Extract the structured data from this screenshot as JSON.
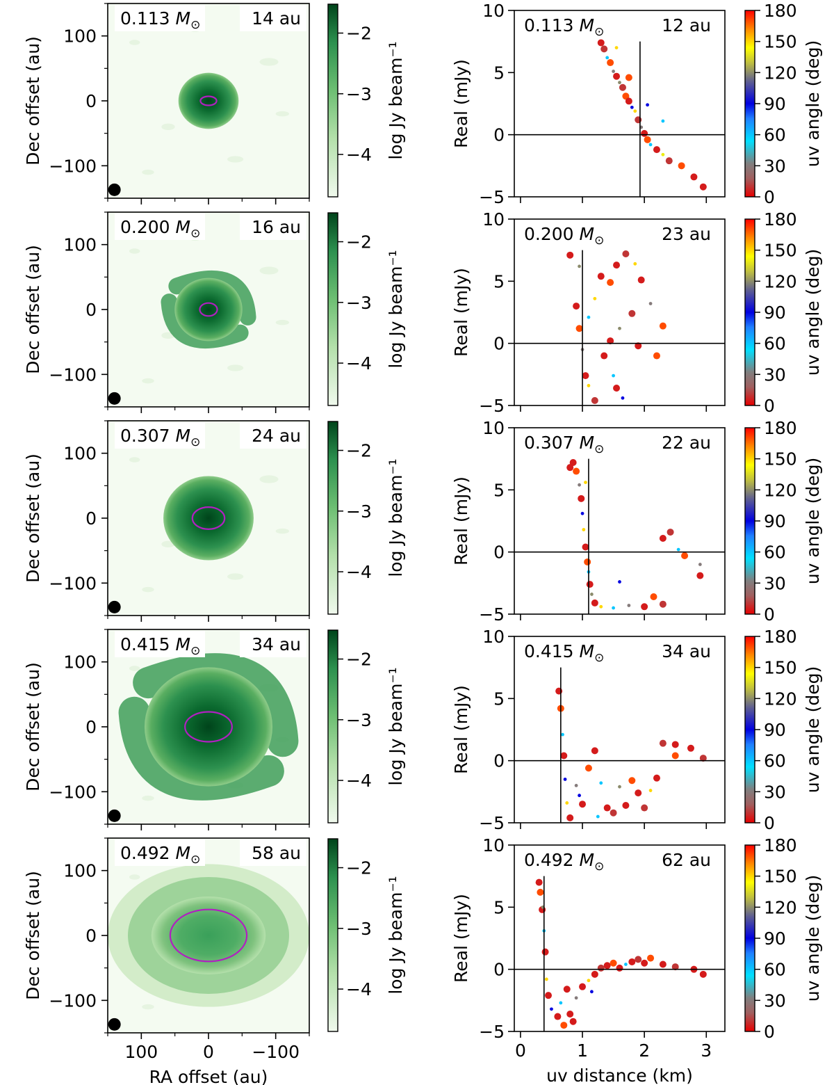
{
  "chart_data": {
    "type": "scatter",
    "layout": "5 rows x 2 columns; left column images with colorbars, right column scatter plots with colorbars",
    "shared_labels": {
      "image_xlabel": "RA offset (au)",
      "image_ylabel": "Dec offset (au)",
      "image_colorbar_label": "log Jy beam⁻¹",
      "scatter_xlabel": "uv distance (km)",
      "scatter_ylabel": "Real (mJy)",
      "scatter_colorbar_label": "uv angle (deg)"
    },
    "image_axes": {
      "xlim": [
        150,
        -150
      ],
      "ylim": [
        -150,
        150
      ],
      "xticks": [
        100,
        0,
        -100
      ],
      "yticks": [
        100,
        0,
        -100
      ],
      "xtick_labels": [
        "100",
        "0",
        "−100"
      ],
      "ytick_labels": [
        "100",
        "0",
        "−100"
      ],
      "colormap": "Greens",
      "colorbar_ticks": [
        "−2",
        "−3",
        "−4"
      ]
    },
    "scatter_axes": {
      "xlim": [
        -0.1,
        3.3
      ],
      "ylim": [
        -5,
        10
      ],
      "xticks": [
        0,
        1,
        2,
        3
      ],
      "xtick_labels": [
        "0",
        "1",
        "2",
        "3"
      ],
      "yticks": [
        -5,
        0,
        5,
        10
      ],
      "ytick_labels": [
        "−5",
        "0",
        "5",
        "10"
      ],
      "colormap": "red-grey-blue-cyan-yellow-orange-red (jet-like)",
      "colorbar_ticks": [
        "180",
        "150",
        "120",
        "90",
        "60",
        "30",
        "0"
      ],
      "colorbar_tick_values": [
        180,
        150,
        120,
        90,
        60,
        30,
        0
      ]
    },
    "panels": [
      {
        "mass": "0.113",
        "unit": "M⊙",
        "image_radius": "14 au",
        "uv_radius": "12 au",
        "image": {
          "extent_au": 40,
          "spiral": false,
          "ellipse_au": [
            12,
            7
          ]
        },
        "uv_null_km": 1.93,
        "uv_points": [
          [
            1.3,
            7.4,
            5
          ],
          [
            1.35,
            6.9,
            10
          ],
          [
            1.4,
            6.2,
            60
          ],
          [
            1.45,
            5.8,
            170
          ],
          [
            1.5,
            5.1,
            30
          ],
          [
            1.55,
            4.7,
            5
          ],
          [
            1.6,
            4.2,
            120
          ],
          [
            1.65,
            3.8,
            10
          ],
          [
            1.7,
            3.1,
            170
          ],
          [
            1.75,
            2.7,
            5
          ],
          [
            1.8,
            2.2,
            90
          ],
          [
            1.85,
            1.9,
            150
          ],
          [
            1.9,
            1.2,
            10
          ],
          [
            1.95,
            0.6,
            30
          ],
          [
            2.0,
            0.1,
            5
          ],
          [
            2.05,
            -0.4,
            170
          ],
          [
            2.1,
            -0.8,
            60
          ],
          [
            2.2,
            -1.2,
            5
          ],
          [
            2.3,
            -1.6,
            140
          ],
          [
            2.4,
            -2.1,
            10
          ],
          [
            2.6,
            -2.5,
            170
          ],
          [
            2.8,
            -3.4,
            5
          ],
          [
            2.95,
            -4.2,
            5
          ],
          [
            1.75,
            4.6,
            170
          ],
          [
            2.3,
            1.1,
            60
          ],
          [
            1.55,
            7.0,
            150
          ],
          [
            2.05,
            2.4,
            90
          ]
        ]
      },
      {
        "mass": "0.200",
        "unit": "M⊙",
        "image_radius": "16 au",
        "uv_radius": "23 au",
        "image": {
          "extent_au": 45,
          "spiral": true,
          "ellipse_au": [
            13,
            10
          ]
        },
        "uv_null_km": 1.0,
        "uv_points": [
          [
            0.9,
            3.0,
            5
          ],
          [
            0.95,
            1.2,
            170
          ],
          [
            1.0,
            -0.5,
            30
          ],
          [
            1.05,
            -2.6,
            5
          ],
          [
            1.1,
            -3.4,
            150
          ],
          [
            1.2,
            -4.6,
            10
          ],
          [
            0.8,
            7.1,
            5
          ],
          [
            0.95,
            6.2,
            120
          ],
          [
            1.3,
            5.4,
            5
          ],
          [
            1.45,
            4.9,
            170
          ],
          [
            1.55,
            6.3,
            5
          ],
          [
            1.7,
            7.2,
            10
          ],
          [
            1.85,
            6.4,
            150
          ],
          [
            1.95,
            5.1,
            5
          ],
          [
            2.1,
            3.2,
            30
          ],
          [
            2.3,
            1.4,
            170
          ],
          [
            1.35,
            -1.0,
            5
          ],
          [
            1.5,
            -2.6,
            60
          ],
          [
            1.55,
            -3.6,
            5
          ],
          [
            1.6,
            1.2,
            120
          ],
          [
            1.8,
            2.4,
            10
          ],
          [
            1.2,
            3.6,
            150
          ],
          [
            1.65,
            -4.4,
            90
          ],
          [
            1.9,
            -0.2,
            5
          ],
          [
            2.2,
            -1.0,
            170
          ],
          [
            1.1,
            2.1,
            60
          ],
          [
            1.45,
            0.2,
            5
          ]
        ]
      },
      {
        "mass": "0.307",
        "unit": "M⊙",
        "image_radius": "24 au",
        "uv_radius": "22 au",
        "image": {
          "extent_au": 60,
          "spiral": false,
          "ellipse_au": [
            24,
            17
          ]
        },
        "uv_null_km": 1.1,
        "uv_points": [
          [
            0.85,
            7.2,
            5
          ],
          [
            0.9,
            6.5,
            170
          ],
          [
            0.95,
            5.4,
            30
          ],
          [
            0.98,
            4.3,
            5
          ],
          [
            1.0,
            3.1,
            90
          ],
          [
            1.02,
            1.8,
            150
          ],
          [
            1.05,
            0.4,
            5
          ],
          [
            1.08,
            -0.8,
            170
          ],
          [
            1.1,
            -1.6,
            60
          ],
          [
            1.12,
            -2.6,
            5
          ],
          [
            1.15,
            -3.4,
            120
          ],
          [
            1.2,
            -4.1,
            5
          ],
          [
            1.3,
            -4.4,
            150
          ],
          [
            1.5,
            -4.5,
            60
          ],
          [
            1.75,
            -4.3,
            30
          ],
          [
            2.0,
            -4.4,
            5
          ],
          [
            2.15,
            -3.6,
            170
          ],
          [
            2.3,
            -4.2,
            10
          ],
          [
            2.3,
            1.1,
            5
          ],
          [
            2.42,
            1.6,
            10
          ],
          [
            2.65,
            -0.3,
            170
          ],
          [
            2.9,
            -1.9,
            5
          ],
          [
            2.9,
            -1.0,
            30
          ],
          [
            1.05,
            5.6,
            150
          ],
          [
            0.8,
            6.8,
            5
          ],
          [
            2.55,
            0.2,
            60
          ],
          [
            1.6,
            -2.4,
            90
          ]
        ]
      },
      {
        "mass": "0.415",
        "unit": "M⊙",
        "image_radius": "34 au",
        "uv_radius": "34 au",
        "image": {
          "extent_au": 85,
          "spiral": true,
          "ellipse_au": [
            35,
            23
          ]
        },
        "uv_null_km": 0.65,
        "uv_points": [
          [
            0.62,
            5.6,
            5
          ],
          [
            0.65,
            4.2,
            170
          ],
          [
            0.68,
            2.1,
            60
          ],
          [
            0.7,
            0.4,
            5
          ],
          [
            0.72,
            -1.5,
            90
          ],
          [
            0.75,
            -3.4,
            150
          ],
          [
            0.8,
            -4.6,
            5
          ],
          [
            0.9,
            -2.0,
            30
          ],
          [
            1.0,
            -3.5,
            5
          ],
          [
            1.1,
            -0.6,
            170
          ],
          [
            1.2,
            0.8,
            5
          ],
          [
            1.3,
            -1.8,
            60
          ],
          [
            1.4,
            -3.8,
            5
          ],
          [
            1.5,
            -4.2,
            10
          ],
          [
            1.6,
            -2.1,
            120
          ],
          [
            1.7,
            -3.6,
            5
          ],
          [
            1.8,
            -1.6,
            170
          ],
          [
            1.9,
            -2.6,
            5
          ],
          [
            2.0,
            -3.8,
            10
          ],
          [
            2.1,
            -2.4,
            150
          ],
          [
            2.2,
            -1.4,
            5
          ],
          [
            2.3,
            1.4,
            10
          ],
          [
            2.5,
            1.3,
            5
          ],
          [
            2.5,
            0.4,
            170
          ],
          [
            2.75,
            1.0,
            5
          ],
          [
            2.95,
            0.2,
            10
          ],
          [
            0.95,
            -2.8,
            90
          ],
          [
            1.25,
            -4.5,
            60
          ]
        ]
      },
      {
        "mass": "0.492",
        "unit": "M⊙",
        "image_radius": "58 au",
        "uv_radius": "62 au",
        "image": {
          "extent_au": 150,
          "spiral": false,
          "ellipse_au": [
            57,
            40
          ]
        },
        "uv_null_km": 0.38,
        "uv_points": [
          [
            0.3,
            7.0,
            5
          ],
          [
            0.32,
            6.2,
            170
          ],
          [
            0.35,
            4.8,
            5
          ],
          [
            0.38,
            3.1,
            60
          ],
          [
            0.4,
            1.4,
            5
          ],
          [
            0.42,
            -0.8,
            150
          ],
          [
            0.45,
            -2.1,
            5
          ],
          [
            0.5,
            -3.2,
            90
          ],
          [
            0.6,
            -3.8,
            5
          ],
          [
            0.7,
            -4.5,
            170
          ],
          [
            0.8,
            -3.6,
            5
          ],
          [
            0.9,
            -2.3,
            30
          ],
          [
            1.0,
            -1.4,
            5
          ],
          [
            1.1,
            -0.9,
            150
          ],
          [
            1.2,
            -0.4,
            5
          ],
          [
            1.3,
            0.1,
            10
          ],
          [
            1.4,
            0.3,
            5
          ],
          [
            1.5,
            0.5,
            170
          ],
          [
            1.6,
            0.1,
            5
          ],
          [
            1.7,
            0.4,
            60
          ],
          [
            1.8,
            0.6,
            5
          ],
          [
            1.9,
            0.8,
            10
          ],
          [
            2.0,
            0.5,
            5
          ],
          [
            2.1,
            0.9,
            170
          ],
          [
            2.3,
            0.4,
            5
          ],
          [
            2.5,
            0.2,
            10
          ],
          [
            2.8,
            0.0,
            5
          ],
          [
            2.95,
            -0.4,
            5
          ],
          [
            0.36,
            5.0,
            120
          ],
          [
            0.65,
            -2.7,
            60
          ],
          [
            0.85,
            -4.2,
            5
          ],
          [
            1.15,
            -1.8,
            90
          ],
          [
            0.75,
            -1.6,
            5
          ]
        ]
      }
    ]
  }
}
